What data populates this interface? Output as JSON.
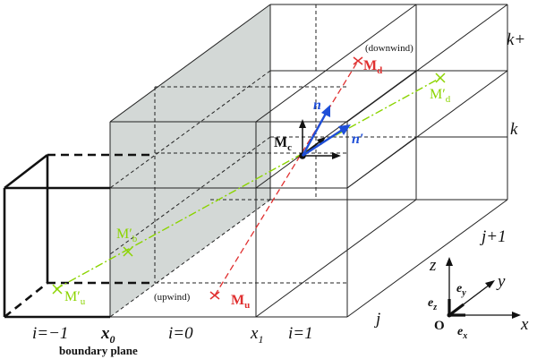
{
  "labels": {
    "k_plus": "k+",
    "k": "k",
    "j_plus_1": "j+1",
    "j": "j",
    "i_minus_1": "i=−1",
    "i_0": "i=0",
    "i_1": "i=1",
    "x0_base": "x",
    "x0_sub": "0",
    "x1_base": "x",
    "x1_sub": "1",
    "boundary_plane": "boundary plane",
    "downwind": "(downwind)",
    "upwind": "(upwind)",
    "Md_base": "M",
    "Md_sub": "d",
    "Mu_base": "M",
    "Mu_sub": "u",
    "Mc_base": "M",
    "Mc_sub": "c",
    "Mdp_base": "M′",
    "Mdp_sub": "d",
    "Mbp_base": "M′",
    "Mbp_sub": "b",
    "Mup_base": "M′",
    "Mup_sub": "u",
    "n": "n",
    "n_prime": "n′"
  },
  "axes": {
    "x": "x",
    "y": "y",
    "z": "z",
    "origin": "O",
    "ex_base": "e",
    "ex_sub": "x",
    "ey_base": "e",
    "ey_sub": "y",
    "ez_base": "e",
    "ez_sub": "z"
  },
  "colors": {
    "grid": "#222222",
    "shaded_face": "#d3d8d6",
    "red_line": "#e03030",
    "green_line": "#8bd400",
    "blue_vector": "#1f4fd8",
    "black": "#111111"
  }
}
